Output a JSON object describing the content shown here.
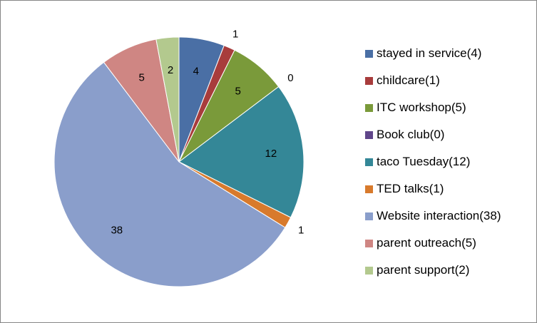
{
  "chart_data": {
    "type": "pie",
    "title": "",
    "slices": [
      {
        "label": "stayed in service(4)",
        "value": 4,
        "color": "#4a6fa5"
      },
      {
        "label": "childcare(1)",
        "value": 1,
        "color": "#a83c3c"
      },
      {
        "label": "ITC workshop(5)",
        "value": 5,
        "color": "#7a9a3a"
      },
      {
        "label": "Book club(0)",
        "value": 0,
        "color": "#60468a"
      },
      {
        "label": "taco Tuesday(12)",
        "value": 12,
        "color": "#348797"
      },
      {
        "label": "TED talks(1)",
        "value": 1,
        "color": "#d87a2c"
      },
      {
        "label": "Website interaction(38)",
        "value": 38,
        "color": "#8a9ecb"
      },
      {
        "label": "parent outreach(5)",
        "value": 5,
        "color": "#cf8683"
      },
      {
        "label": "parent support(2)",
        "value": 2,
        "color": "#b3c98e"
      }
    ],
    "data_labels": [
      "4",
      "1",
      "5",
      "0",
      "12",
      "1",
      "38",
      "5",
      "2"
    ],
    "legend_position": "right",
    "start_angle": "12 o'clock, clockwise"
  }
}
